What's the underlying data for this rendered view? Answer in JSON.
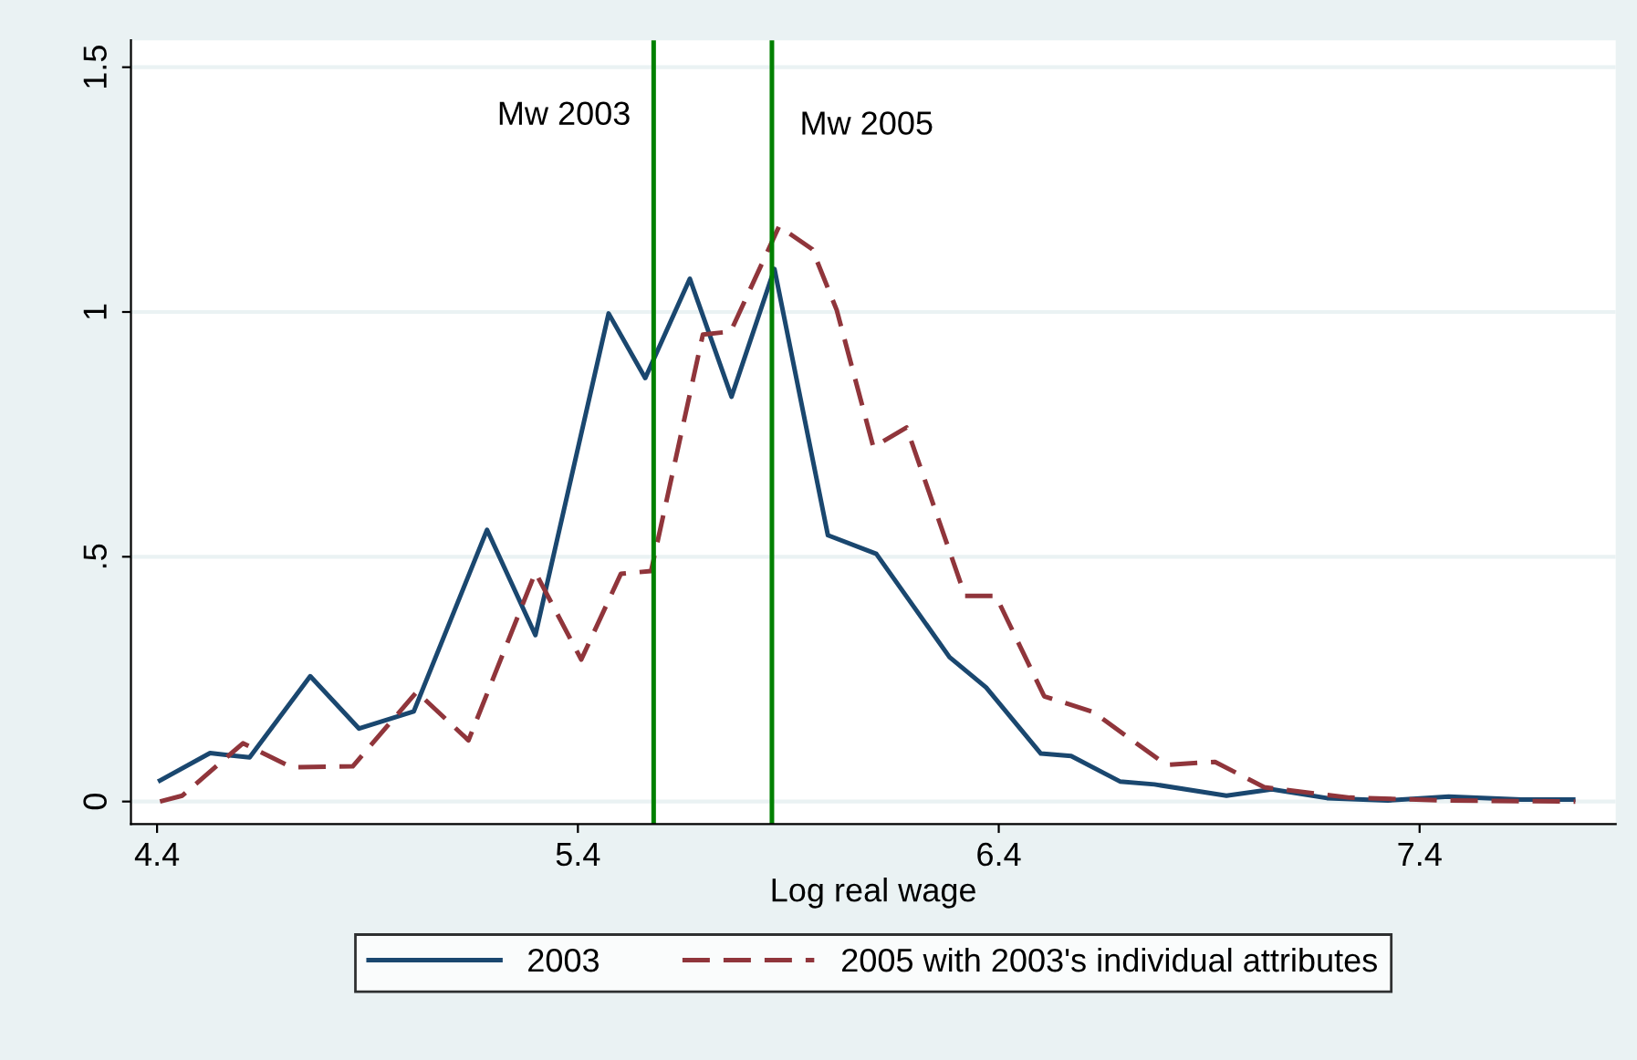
{
  "chart_data": {
    "type": "line",
    "xlabel": "Log real wage",
    "xlim": [
      4.338,
      7.866
    ],
    "ylim": [
      -0.046,
      1.555
    ],
    "xticks": [
      4.4,
      5.4,
      6.4,
      7.4
    ],
    "yticks": [
      0,
      {
        "value": 0.5,
        "label": ".5"
      },
      1,
      1.5
    ],
    "grid": "y",
    "legend": "bottom",
    "series": [
      {
        "name": "2003",
        "color": "#1a476f",
        "line_style": "solid",
        "x": [
          4.407,
          4.526,
          4.62,
          4.764,
          4.88,
          5.01,
          5.184,
          5.299,
          5.473,
          5.56,
          5.666,
          5.765,
          5.867,
          5.994,
          6.109,
          6.283,
          6.37,
          6.5,
          6.572,
          6.688,
          6.77,
          6.941,
          7.049,
          7.18,
          7.324,
          7.469,
          7.641,
          7.765
        ],
        "values": [
          0.043,
          0.099,
          0.09,
          0.256,
          0.149,
          0.184,
          0.555,
          0.34,
          0.997,
          0.865,
          1.068,
          0.827,
          1.088,
          0.544,
          0.506,
          0.295,
          0.233,
          0.098,
          0.093,
          0.041,
          0.035,
          0.012,
          0.025,
          0.007,
          0.002,
          0.01,
          0.004,
          0.004
        ]
      },
      {
        "name": "2005 with 2003's individual attributes",
        "color": "#90353b",
        "line_style": "dashed",
        "x": [
          4.407,
          4.46,
          4.604,
          4.72,
          4.865,
          5.017,
          5.14,
          5.299,
          5.408,
          5.502,
          5.574,
          5.697,
          5.763,
          5.878,
          5.957,
          6.015,
          6.102,
          6.181,
          6.32,
          6.393,
          6.508,
          6.624,
          6.798,
          6.914,
          7.031,
          7.234,
          7.466,
          7.77
        ],
        "values": [
          0,
          0.012,
          0.119,
          0.07,
          0.072,
          0.224,
          0.125,
          0.468,
          0.29,
          0.465,
          0.471,
          0.954,
          0.96,
          1.175,
          1.128,
          1.004,
          0.724,
          0.764,
          0.42,
          0.42,
          0.215,
          0.183,
          0.075,
          0.081,
          0.029,
          0.008,
          0.002,
          0
        ]
      }
    ],
    "ref_lines": [
      {
        "axis": "x",
        "value": 5.58,
        "label": "Mw 2003",
        "color": "#008000"
      },
      {
        "axis": "x",
        "value": 5.861,
        "label": "Mw 2005",
        "color": "#008000"
      }
    ]
  }
}
